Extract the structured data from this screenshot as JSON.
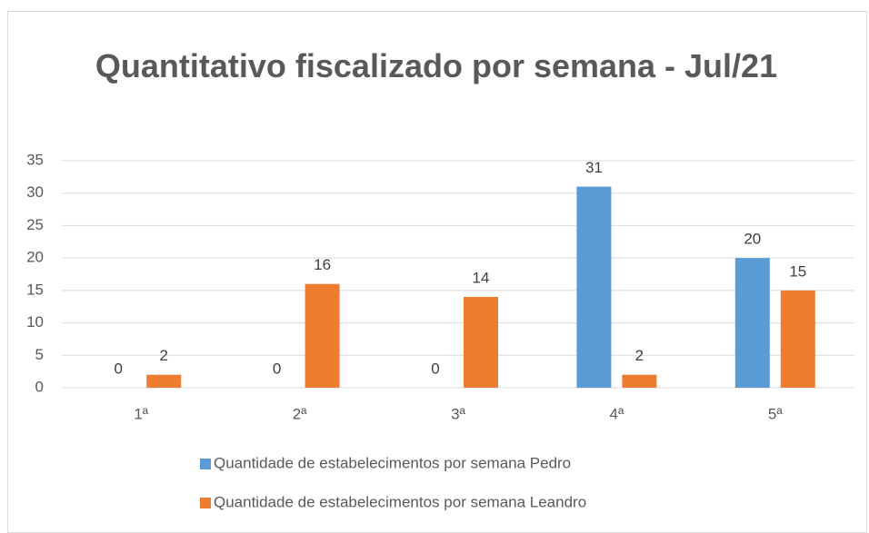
{
  "chart_data": {
    "type": "bar",
    "title": "Quantitativo fiscalizado por semana - Jul/21",
    "categories": [
      "1ª",
      "2ª",
      "3ª",
      "4ª",
      "5ª"
    ],
    "series": [
      {
        "name": "Quantidade de estabelecimentos por semana Pedro",
        "color": "#5b9bd5",
        "values": [
          0,
          0,
          0,
          31,
          20
        ]
      },
      {
        "name": "Quantidade de estabelecimentos por semana Leandro",
        "color": "#ed7d31",
        "values": [
          2,
          16,
          14,
          2,
          15
        ]
      }
    ],
    "ylim": [
      0,
      35
    ],
    "yticks": [
      0,
      5,
      10,
      15,
      20,
      25,
      30,
      35
    ],
    "grid": true,
    "legend": "bottom"
  }
}
